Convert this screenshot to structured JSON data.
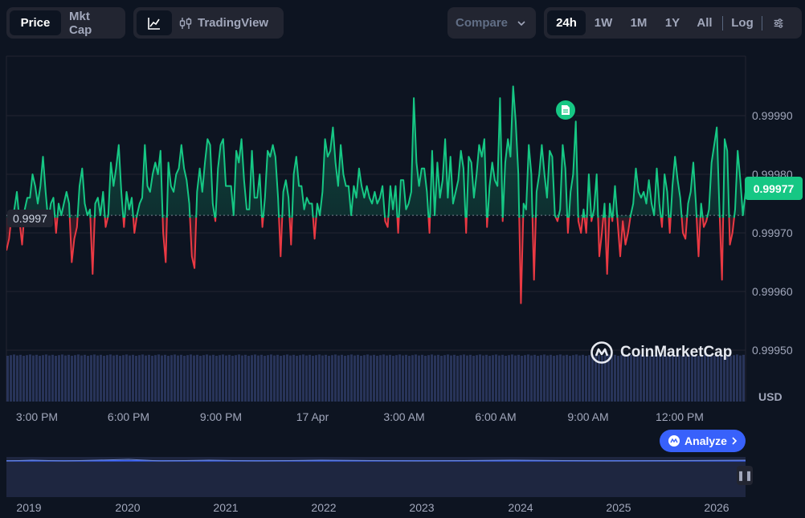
{
  "toolbar": {
    "view_tabs": [
      {
        "label": "Price",
        "active": true
      },
      {
        "label": "Mkt Cap",
        "active": false
      }
    ],
    "chart_type": {
      "line_icon": "line-chart-icon",
      "tradingview_label": "TradingView",
      "tradingview_icon": "candles-icon"
    },
    "compare": {
      "label": "Compare",
      "icon": "chevron-down-icon"
    },
    "ranges": [
      {
        "label": "24h",
        "active": true
      },
      {
        "label": "1W",
        "active": false
      },
      {
        "label": "1M",
        "active": false
      },
      {
        "label": "1Y",
        "active": false
      },
      {
        "label": "All",
        "active": false
      }
    ],
    "log_label": "Log",
    "settings_icon": "sliders-icon"
  },
  "chart": {
    "current_price": "0.99977",
    "baseline_label": "0.9997",
    "currency": "USD",
    "watermark": "CoinMarketCap",
    "analyze_label": "Analyze",
    "event_icon": "document-icon"
  },
  "navigator": {
    "years": [
      "2019",
      "2020",
      "2021",
      "2022",
      "2023",
      "2024",
      "2025",
      "2026"
    ],
    "pause_icon": "pause-icon"
  },
  "colors": {
    "up": "#16c784",
    "down": "#ea3943",
    "accent": "#3861fb",
    "background": "#0d1421"
  },
  "chart_data": {
    "type": "line",
    "title": "",
    "xlabel": "",
    "ylabel": "USD",
    "x_tick_labels": [
      "3:00 PM",
      "6:00 PM",
      "9:00 PM",
      "17 Apr",
      "3:00 AM",
      "6:00 AM",
      "9:00 AM",
      "12:00 PM"
    ],
    "y_tick_labels": [
      "0.99990",
      "0.99980",
      "0.99970",
      "0.99960",
      "0.99950"
    ],
    "ylim": [
      0.99945,
      1.0
    ],
    "baseline": 0.99973,
    "grid": true,
    "series": [
      {
        "values": [
          0.99967,
          0.99969,
          0.99973,
          0.99974,
          0.99977,
          0.99972,
          0.99968,
          0.99974,
          0.99976,
          0.99976,
          0.9998,
          0.99978,
          0.99975,
          0.99978,
          0.99983,
          0.99977,
          0.99972,
          0.99975,
          0.99976,
          0.9997,
          0.99975,
          0.99973,
          0.99975,
          0.99977,
          0.99975,
          0.99965,
          0.99969,
          0.99971,
          0.99978,
          0.99981,
          0.99975,
          0.99973,
          0.99974,
          0.99963,
          0.99975,
          0.99976,
          0.99973,
          0.99977,
          0.99971,
          0.99973,
          0.99982,
          0.99978,
          0.99981,
          0.99985,
          0.99977,
          0.99971,
          0.99977,
          0.99974,
          0.99976,
          0.9997,
          0.99973,
          0.99975,
          0.99976,
          0.99985,
          0.99978,
          0.99977,
          0.9998,
          0.99982,
          0.9998,
          0.99984,
          0.9997,
          0.99965,
          0.99982,
          0.99978,
          0.99977,
          0.9998,
          0.99981,
          0.99985,
          0.99981,
          0.99979,
          0.99975,
          0.99966,
          0.99964,
          0.99977,
          0.99981,
          0.99977,
          0.99982,
          0.99986,
          0.99985,
          0.99975,
          0.99972,
          0.99981,
          0.99985,
          0.99986,
          0.99978,
          0.99978,
          0.99978,
          0.99973,
          0.99984,
          0.99982,
          0.99986,
          0.99979,
          0.99974,
          0.99974,
          0.99984,
          0.99976,
          0.99976,
          0.9998,
          0.99971,
          0.99976,
          0.99984,
          0.99983,
          0.99985,
          0.99983,
          0.99976,
          0.99966,
          0.99977,
          0.99979,
          0.99976,
          0.99968,
          0.9998,
          0.99983,
          0.99978,
          0.99978,
          0.99974,
          0.99976,
          0.99975,
          0.99975,
          0.99969,
          0.99975,
          0.99973,
          0.99977,
          0.99986,
          0.99983,
          0.99984,
          0.99988,
          0.99982,
          0.99978,
          0.99985,
          0.9998,
          0.99978,
          0.99978,
          0.99973,
          0.99978,
          0.99976,
          0.99981,
          0.99978,
          0.99976,
          0.99978,
          0.99976,
          0.99975,
          0.99977,
          0.99975,
          0.99976,
          0.99978,
          0.99972,
          0.99971,
          0.99978,
          0.99974,
          0.99978,
          0.9997,
          0.99979,
          0.99979,
          0.99974,
          0.99975,
          0.99977,
          0.99993,
          0.99982,
          0.99978,
          0.99981,
          0.99981,
          0.99977,
          0.9997,
          0.99984,
          0.99973,
          0.99982,
          0.99976,
          0.99979,
          0.99986,
          0.99976,
          0.99983,
          0.99975,
          0.99977,
          0.99979,
          0.99984,
          0.99981,
          0.9997,
          0.99983,
          0.99982,
          0.99976,
          0.9998,
          0.99985,
          0.99983,
          0.99986,
          0.99971,
          0.99978,
          0.99982,
          0.99979,
          0.99978,
          0.99993,
          0.99972,
          0.99982,
          0.99986,
          0.99983,
          0.99995,
          0.99989,
          0.9998,
          0.99958,
          0.99975,
          0.99974,
          0.99985,
          0.9998,
          0.99962,
          0.99977,
          0.9998,
          0.99985,
          0.9998,
          0.99976,
          0.99984,
          0.99983,
          0.99973,
          0.99972,
          0.99974,
          0.99985,
          0.99981,
          0.9997,
          0.99977,
          0.9998,
          0.99989,
          0.99972,
          0.9997,
          0.99974,
          0.9997,
          0.9998,
          0.99972,
          0.99974,
          0.9998,
          0.99966,
          0.9997,
          0.99975,
          0.99963,
          0.99975,
          0.99972,
          0.99978,
          0.99972,
          0.99966,
          0.99972,
          0.99968,
          0.9997,
          0.99973,
          0.99975,
          0.99981,
          0.99977,
          0.99976,
          0.99977,
          0.99975,
          0.99979,
          0.99975,
          0.99973,
          0.99981,
          0.99975,
          0.99971,
          0.9998,
          0.99977,
          0.9997,
          0.99978,
          0.99983,
          0.99979,
          0.99976,
          0.9997,
          0.99969,
          0.99975,
          0.99977,
          0.99982,
          0.99975,
          0.99966,
          0.99975,
          0.99971,
          0.99972,
          0.99974,
          0.99982,
          0.99985,
          0.99988,
          0.99974,
          0.99962,
          0.99986,
          0.99984,
          0.99968,
          0.9997,
          0.99974,
          0.99984,
          0.99979,
          0.99973,
          0.99977
        ]
      }
    ]
  }
}
